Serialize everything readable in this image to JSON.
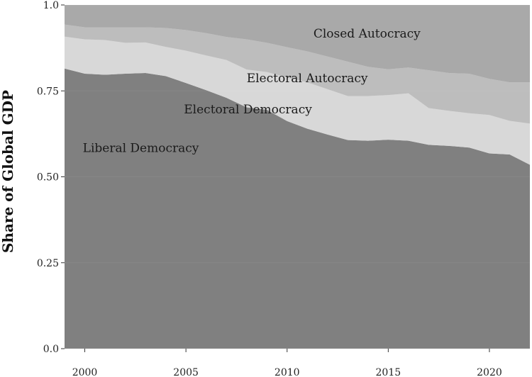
{
  "chart_data": {
    "type": "area",
    "stacked": true,
    "ylabel": "Share of Global GDP",
    "xlabel": "",
    "title": "",
    "ylim": [
      0,
      1.0
    ],
    "y_ticks": [
      0.0,
      0.25,
      0.5,
      0.75,
      1.0
    ],
    "y_tick_labels": [
      "0.0",
      "0.25",
      "0.50",
      "0.75",
      "1.0"
    ],
    "xlim": [
      1999,
      2022
    ],
    "x_ticks": [
      2000,
      2005,
      2010,
      2015,
      2020
    ],
    "x_tick_labels": [
      "2000",
      "2005",
      "2010",
      "2015",
      "2020"
    ],
    "grid": true,
    "background_color": "#ffffff",
    "x": [
      1999,
      2000,
      2001,
      2002,
      2003,
      2004,
      2005,
      2006,
      2007,
      2008,
      2009,
      2010,
      2011,
      2012,
      2013,
      2014,
      2015,
      2016,
      2017,
      2018,
      2019,
      2020,
      2021,
      2022
    ],
    "series": [
      {
        "name": "Liberal Democracy",
        "color": "#808080",
        "values": [
          0.815,
          0.8,
          0.797,
          0.8,
          0.802,
          0.793,
          0.773,
          0.752,
          0.73,
          0.702,
          0.695,
          0.662,
          0.64,
          0.623,
          0.607,
          0.605,
          0.608,
          0.605,
          0.593,
          0.59,
          0.585,
          0.568,
          0.565,
          0.535
        ]
      },
      {
        "name": "Electoral Democracy",
        "color": "#d8d8d8",
        "values": [
          0.093,
          0.1,
          0.101,
          0.09,
          0.089,
          0.085,
          0.094,
          0.101,
          0.11,
          0.11,
          0.11,
          0.127,
          0.135,
          0.132,
          0.128,
          0.13,
          0.13,
          0.138,
          0.107,
          0.102,
          0.1,
          0.112,
          0.098,
          0.12
        ]
      },
      {
        "name": "Electoral Autocracy",
        "color": "#bdbdbd",
        "values": [
          0.035,
          0.035,
          0.037,
          0.045,
          0.044,
          0.055,
          0.06,
          0.065,
          0.067,
          0.088,
          0.085,
          0.088,
          0.09,
          0.095,
          0.1,
          0.085,
          0.075,
          0.075,
          0.11,
          0.11,
          0.115,
          0.105,
          0.112,
          0.12
        ]
      },
      {
        "name": "Closed Autocracy",
        "color": "#a9a9a9",
        "values": [
          0.057,
          0.065,
          0.065,
          0.065,
          0.065,
          0.067,
          0.073,
          0.082,
          0.093,
          0.1,
          0.11,
          0.123,
          0.135,
          0.15,
          0.165,
          0.18,
          0.187,
          0.182,
          0.19,
          0.198,
          0.2,
          0.215,
          0.225,
          0.225
        ]
      }
    ],
    "stack_labels": [
      {
        "text": "Closed Autocracy",
        "x": 2011.3,
        "y": 0.905
      },
      {
        "text": "Electoral Autocracy",
        "x": 2008.0,
        "y": 0.775
      },
      {
        "text": "Electoral Democracy",
        "x": 2004.9,
        "y": 0.685
      },
      {
        "text": "Liberal Democracy",
        "x": 1999.9,
        "y": 0.572
      }
    ]
  }
}
